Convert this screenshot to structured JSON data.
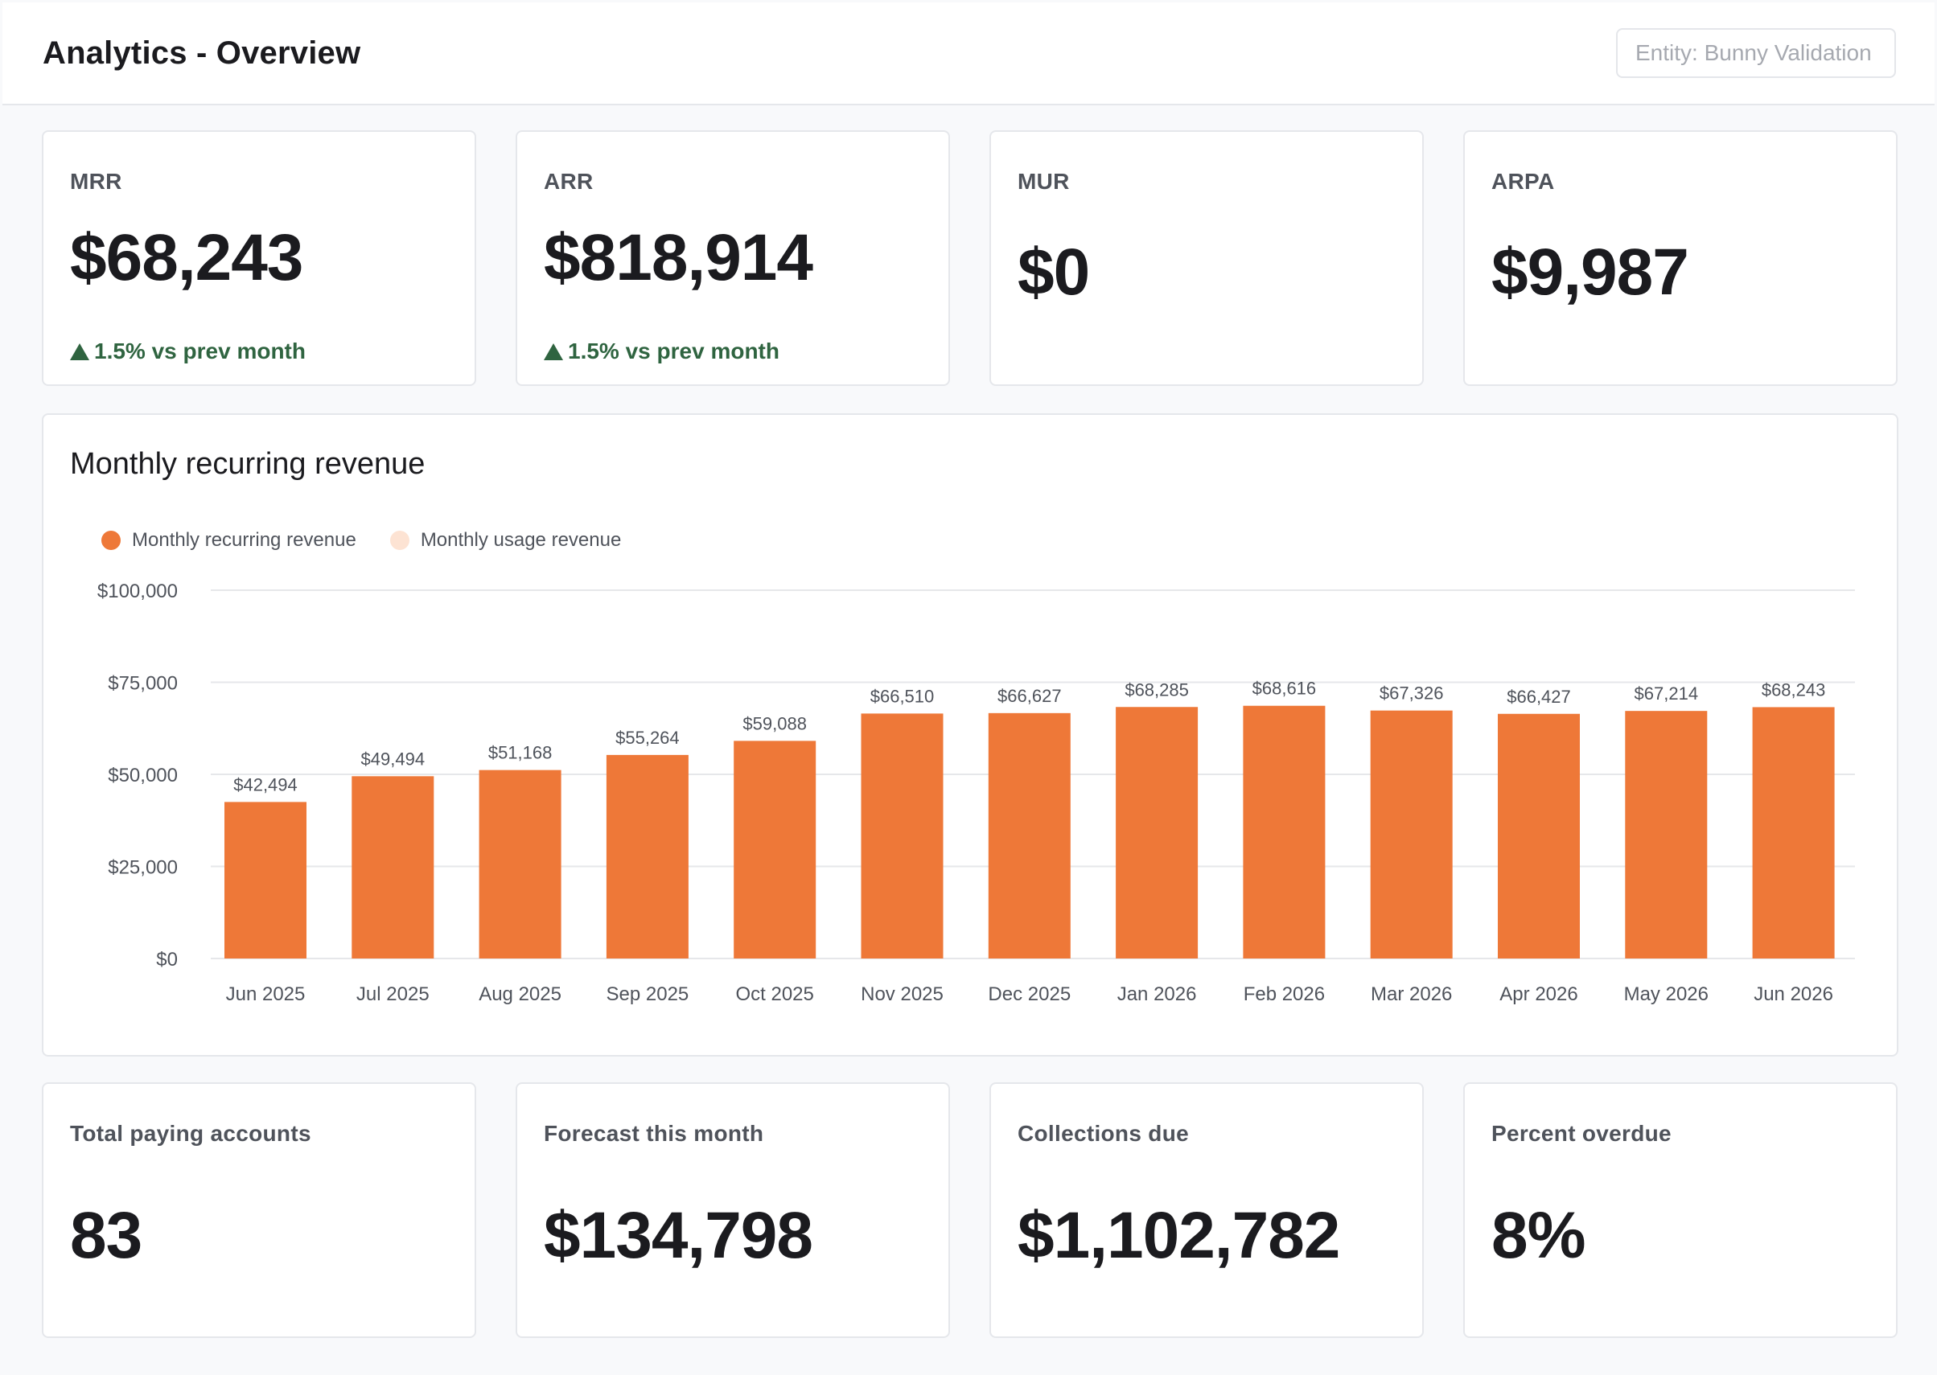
{
  "header": {
    "title": "Analytics - Overview",
    "entity_placeholder": "Entity: Bunny Validation"
  },
  "stats": [
    {
      "label": "MRR",
      "value": "$68,243",
      "change": "1.5% vs prev month"
    },
    {
      "label": "ARR",
      "value": "$818,914",
      "change": "1.5% vs prev month"
    },
    {
      "label": "MUR",
      "value": "$0"
    },
    {
      "label": "ARPA",
      "value": "$9,987"
    }
  ],
  "bottom_stats": [
    {
      "label": "Total paying accounts",
      "value": "83"
    },
    {
      "label": "Forecast this month",
      "value": "$134,798"
    },
    {
      "label": "Collections due",
      "value": "$1,102,782"
    },
    {
      "label": "Percent overdue",
      "value": "8%"
    }
  ],
  "colors": {
    "accent": "#ee7838",
    "usage": "#fde3d3",
    "positive": "#2f6440"
  },
  "chart_data": {
    "type": "bar",
    "title": "Monthly recurring revenue",
    "categories": [
      "Jun 2025",
      "Jul 2025",
      "Aug 2025",
      "Sep 2025",
      "Oct 2025",
      "Nov 2025",
      "Dec 2025",
      "Jan 2026",
      "Feb 2026",
      "Mar 2026",
      "Apr 2026",
      "May 2026",
      "Jun 2026"
    ],
    "series": [
      {
        "name": "Monthly recurring revenue",
        "values": [
          42494,
          49494,
          51168,
          55264,
          59088,
          66510,
          66627,
          68285,
          68616,
          67326,
          66427,
          67214,
          68243
        ],
        "color": "#ee7838"
      },
      {
        "name": "Monthly usage revenue",
        "values": [
          0,
          0,
          0,
          0,
          0,
          0,
          0,
          0,
          0,
          0,
          0,
          0,
          0
        ],
        "color": "#fde3d3"
      }
    ],
    "data_labels": [
      "$42,494",
      "$49,494",
      "$51,168",
      "$55,264",
      "$59,088",
      "$66,510",
      "$66,627",
      "$68,285",
      "$68,616",
      "$67,326",
      "$66,427",
      "$67,214",
      "$68,243"
    ],
    "y_ticks": [
      0,
      25000,
      50000,
      75000,
      100000
    ],
    "y_tick_labels": [
      "$0",
      "$25,000",
      "$50,000",
      "$75,000",
      "$100,000"
    ],
    "ylim": [
      0,
      100000
    ],
    "grid": true,
    "legend": "top-left"
  }
}
